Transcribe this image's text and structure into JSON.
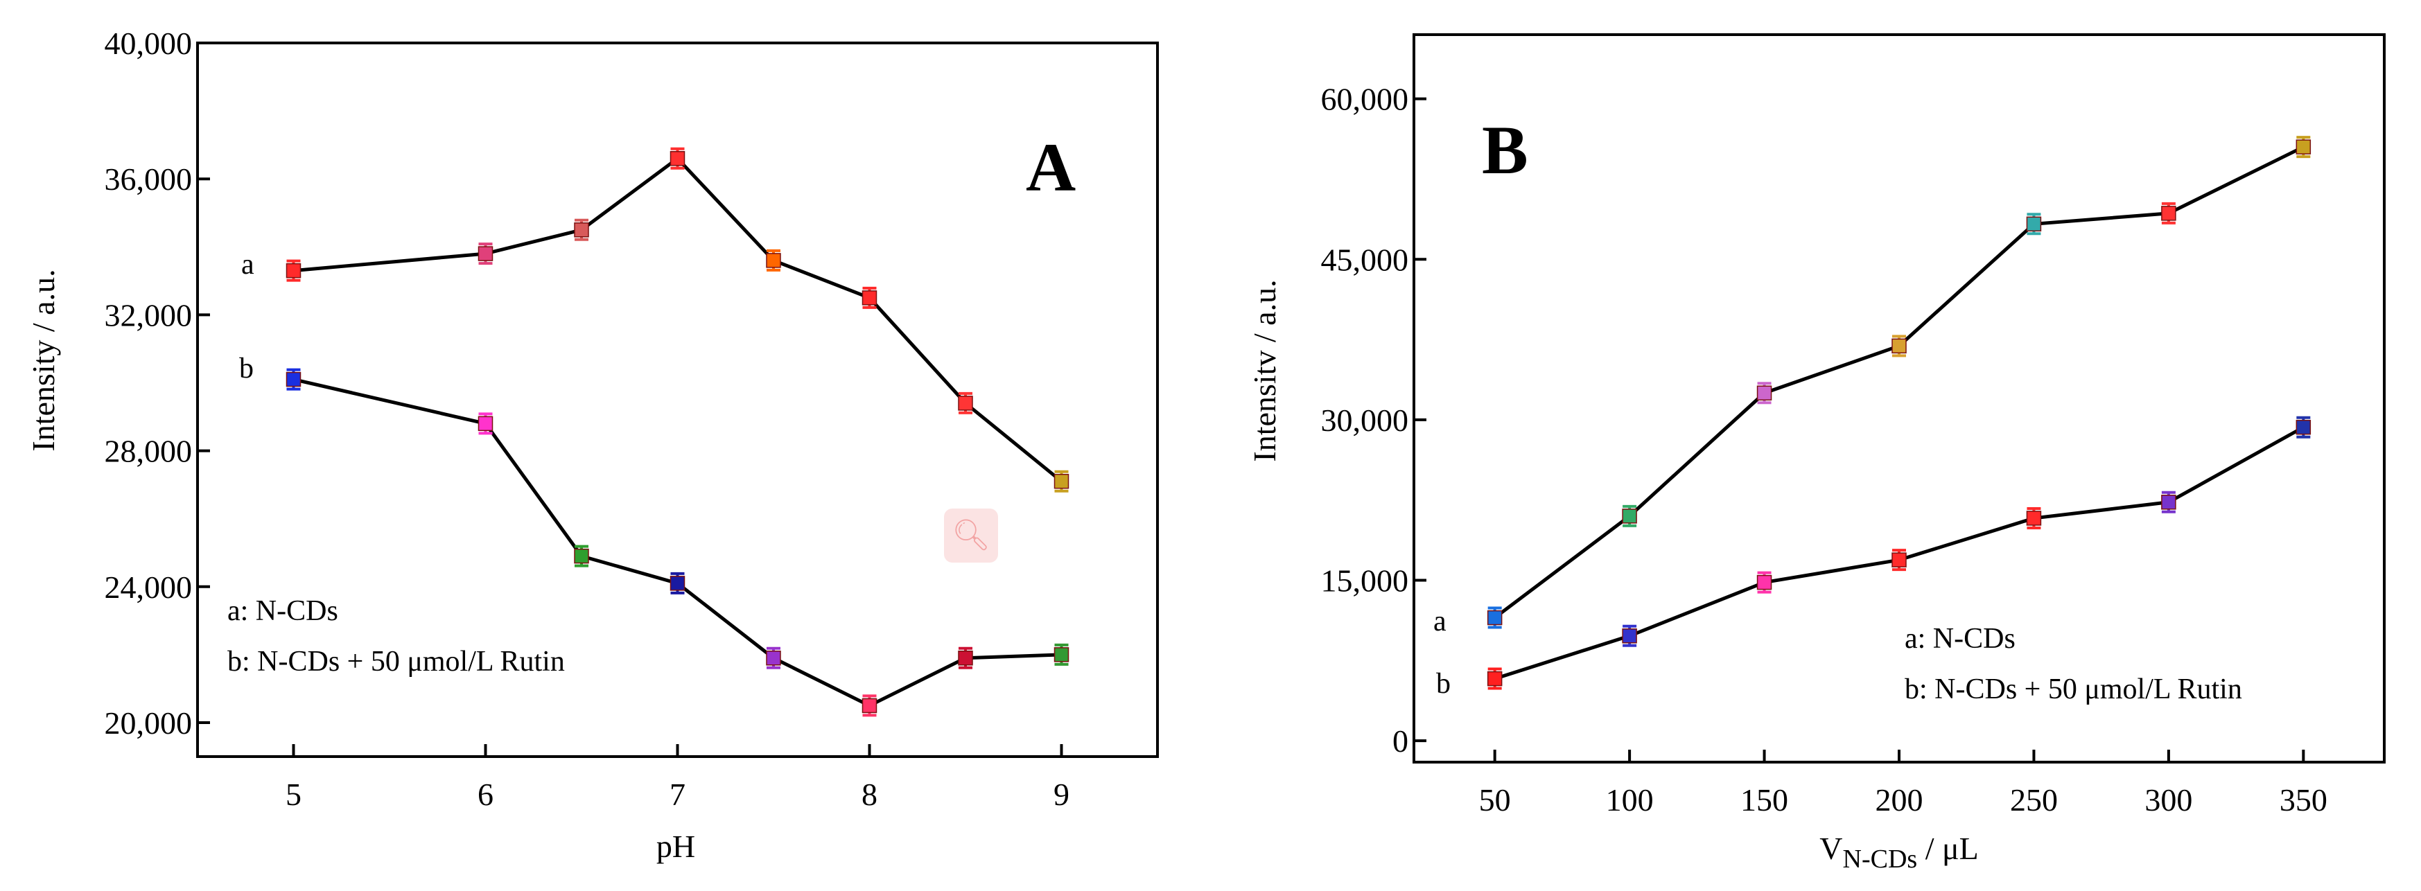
{
  "chart_data": [
    {
      "type": "line",
      "panel_label": "A",
      "xlabel": "pH",
      "ylabel": "Intensity / a.u.",
      "x": [
        5,
        6,
        6.5,
        7,
        7.5,
        8,
        8.5,
        9
      ],
      "x_ticks": [
        5,
        6,
        7,
        8,
        9
      ],
      "x_tick_labels": [
        "5",
        "6",
        "7",
        "8",
        "9"
      ],
      "y_ticks": [
        20000,
        24000,
        28000,
        32000,
        36000,
        40000
      ],
      "y_tick_labels": [
        "20,000",
        "24,000",
        "28,000",
        "32,000",
        "36,000",
        "40,000"
      ],
      "xlim": [
        4.5,
        9.5
      ],
      "ylim": [
        19000,
        40000
      ],
      "series": [
        {
          "name": "a",
          "legend": "a: N-CDs",
          "values": [
            33300,
            33800,
            34500,
            36600,
            33600,
            32500,
            29400,
            27100
          ],
          "colors": [
            "#ff2a2a",
            "#e0407a",
            "#d85a5a",
            "#ff3030",
            "#ff6600",
            "#ff2a2a",
            "#ff3535",
            "#c8a020"
          ]
        },
        {
          "name": "b",
          "legend": "b: N-CDs + 50 μmol/L Rutin",
          "values": [
            30100,
            28800,
            24900,
            24100,
            21900,
            20500,
            21900,
            22000
          ],
          "colors": [
            "#1a2fe0",
            "#ff33cc",
            "#2e9e2e",
            "#1a1aa0",
            "#9933cc",
            "#ff3366",
            "#cc1133",
            "#339933"
          ]
        }
      ]
    },
    {
      "type": "line",
      "panel_label": "B",
      "xlabel_main": "V",
      "xlabel_sub": "N-CDs",
      "xlabel_unit": " / μL",
      "ylabel": "Intensitv / a.u.",
      "x": [
        50,
        100,
        150,
        200,
        250,
        300,
        350
      ],
      "x_ticks": [
        50,
        100,
        150,
        200,
        250,
        300,
        350
      ],
      "x_tick_labels": [
        "50",
        "100",
        "150",
        "200",
        "250",
        "300",
        "350"
      ],
      "y_ticks": [
        0,
        15000,
        30000,
        45000,
        60000
      ],
      "y_tick_labels": [
        "0",
        "15,000",
        "30,000",
        "45,000",
        "60,000"
      ],
      "xlim": [
        20,
        380
      ],
      "ylim": [
        -2000,
        66000
      ],
      "series": [
        {
          "name": "a",
          "legend": "a: N-CDs",
          "values": [
            11500,
            21000,
            32500,
            36900,
            48300,
            49300,
            55500
          ],
          "colors": [
            "#1a6fe0",
            "#33aa66",
            "#cc66cc",
            "#d8a030",
            "#33aaaa",
            "#ff3333",
            "#c8a020"
          ]
        },
        {
          "name": "b",
          "legend": "b: N-CDs + 50 μmol/L Rutin",
          "values": [
            5800,
            9800,
            14800,
            16900,
            20800,
            22300,
            29300
          ],
          "colors": [
            "#ff2020",
            "#3333cc",
            "#ff33aa",
            "#ff2a2a",
            "#ff2a2a",
            "#7733cc",
            "#2233aa"
          ]
        }
      ]
    }
  ]
}
